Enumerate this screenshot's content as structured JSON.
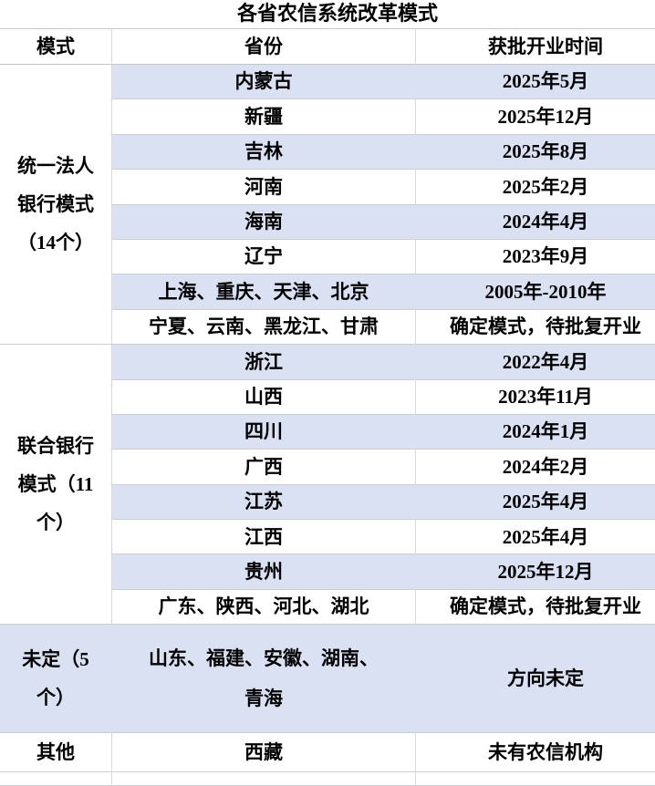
{
  "chart_data": {
    "type": "table",
    "title": "各省农信系统改革模式",
    "columns": [
      "模式",
      "省份",
      "获批开业时间"
    ],
    "sections": [
      {
        "mode": "统一法人\n银行模式\n（14个）",
        "rows": [
          {
            "province": "内蒙古",
            "time": "2025年5月"
          },
          {
            "province": "新疆",
            "time": "2025年12月"
          },
          {
            "province": "吉林",
            "time": "2025年8月"
          },
          {
            "province": "河南",
            "time": "2025年2月"
          },
          {
            "province": "海南",
            "time": "2024年4月"
          },
          {
            "province": "辽宁",
            "time": "2023年9月"
          },
          {
            "province": "上海、重庆、天津、北京",
            "time": "2005年-2010年"
          },
          {
            "province": "宁夏、云南、黑龙江、甘肃",
            "time": "确定模式，待批复开业"
          }
        ]
      },
      {
        "mode": "联合银行\n模式（11\n个）",
        "rows": [
          {
            "province": "浙江",
            "time": "2022年4月"
          },
          {
            "province": "山西",
            "time": "2023年11月"
          },
          {
            "province": "四川",
            "time": "2024年1月"
          },
          {
            "province": "广西",
            "time": "2024年2月"
          },
          {
            "province": "江苏",
            "time": "2025年4月"
          },
          {
            "province": "江西",
            "time": "2025年4月"
          },
          {
            "province": "贵州",
            "time": "2025年12月"
          },
          {
            "province": "广东、陕西、河北、湖北",
            "time": "确定模式，待批复开业"
          }
        ]
      },
      {
        "mode": "未定（5\n个）",
        "rows": [
          {
            "province": "山东、福建、安徽、湖南、\n青海",
            "time": "方向未定"
          }
        ]
      },
      {
        "mode": "其他",
        "rows": [
          {
            "province": "西藏",
            "time": "未有农信机构"
          }
        ]
      }
    ],
    "layout": {
      "stripe_pattern": "alternating rows blue/white within first two sections; undecided section solid blue; other section white"
    }
  },
  "colors": {
    "stripe_blue": "#d9e1f2",
    "grid_vertical": "#d9d9d9",
    "grid_horizontal": "#c9cdd4",
    "text": "#000000",
    "background": "#ffffff"
  }
}
